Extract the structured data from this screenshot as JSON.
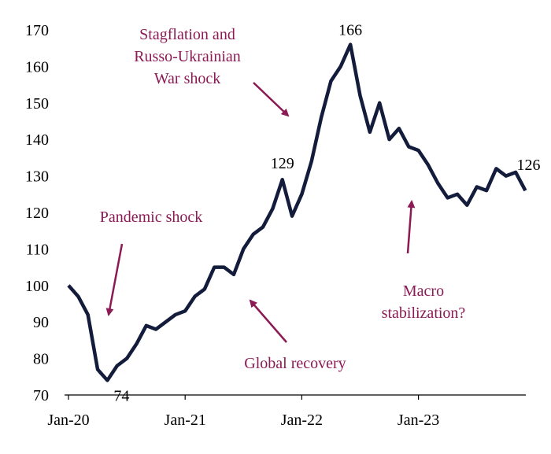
{
  "chart_data": {
    "type": "line",
    "x": [
      "Jan-20",
      "Feb-20",
      "Mar-20",
      "Apr-20",
      "May-20",
      "Jun-20",
      "Jul-20",
      "Aug-20",
      "Sep-20",
      "Oct-20",
      "Nov-20",
      "Dec-20",
      "Jan-21",
      "Feb-21",
      "Mar-21",
      "Apr-21",
      "May-21",
      "Jun-21",
      "Jul-21",
      "Aug-21",
      "Sep-21",
      "Oct-21",
      "Nov-21",
      "Dec-21",
      "Jan-22",
      "Feb-22",
      "Mar-22",
      "Apr-22",
      "May-22",
      "Jun-22",
      "Jul-22",
      "Aug-22",
      "Sep-22",
      "Oct-22",
      "Nov-22",
      "Dec-22",
      "Jan-23",
      "Feb-23",
      "Mar-23",
      "Apr-23",
      "May-23",
      "Jun-23",
      "Jul-23",
      "Aug-23",
      "Sep-23",
      "Oct-23",
      "Nov-23",
      "Dec-23"
    ],
    "values": [
      100,
      97,
      92,
      77,
      74,
      78,
      80,
      84,
      89,
      88,
      90,
      92,
      93,
      97,
      99,
      105,
      105,
      103,
      110,
      114,
      116,
      121,
      129,
      119,
      125,
      134,
      146,
      156,
      160,
      166,
      152,
      142,
      150,
      140,
      143,
      138,
      137,
      133,
      128,
      124,
      125,
      122,
      127,
      126,
      132,
      130,
      131,
      126
    ],
    "color": "#141c3c",
    "ylim": [
      70,
      170
    ],
    "yticks": [
      70,
      80,
      90,
      100,
      110,
      120,
      130,
      140,
      150,
      160,
      170
    ],
    "xticks": [
      "Jan-20",
      "Jan-21",
      "Jan-22",
      "Jan-23"
    ],
    "annotations": [
      {
        "lines": [
          "Stagflation and",
          "Russo-Ukrainian",
          "War shock"
        ]
      },
      {
        "lines": [
          "Pandemic shock"
        ]
      },
      {
        "lines": [
          "Global recovery"
        ]
      },
      {
        "lines": [
          "Macro",
          "stabilization?"
        ]
      }
    ],
    "annotation_color": "#8b1a55"
  }
}
